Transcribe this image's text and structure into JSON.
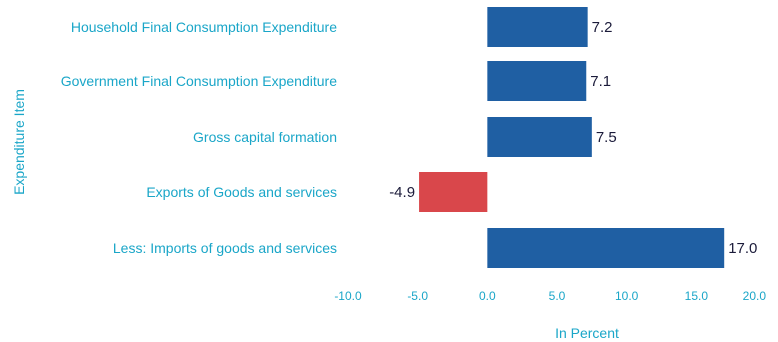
{
  "chart_data": {
    "type": "bar",
    "orientation": "horizontal",
    "categories": [
      "Household Final Consumption Expenditure",
      "Government Final Consumption Expenditure",
      "Gross capital formation",
      "Exports of Goods and services",
      "Less: Imports of goods and services"
    ],
    "values": [
      7.2,
      7.1,
      7.5,
      -4.9,
      17.0
    ],
    "value_labels": [
      "7.2",
      "7.1",
      "7.5",
      "-4.9",
      "17.0"
    ],
    "xlabel": "In Percent",
    "ylabel": "Expenditure Item",
    "xlim": [
      -10.0,
      20.0
    ],
    "xticks": [
      -10.0,
      -5.0,
      0.0,
      5.0,
      10.0,
      15.0,
      20.0
    ],
    "xtick_labels": [
      "-10.0",
      "-5.0",
      "0.0",
      "5.0",
      "10.0",
      "15.0",
      "20.0"
    ],
    "grid": false,
    "colors": {
      "positive": "#1f5fa3",
      "negative": "#d9474b",
      "text": "#1aa6c8",
      "value_text": "#1b1b3a"
    }
  }
}
